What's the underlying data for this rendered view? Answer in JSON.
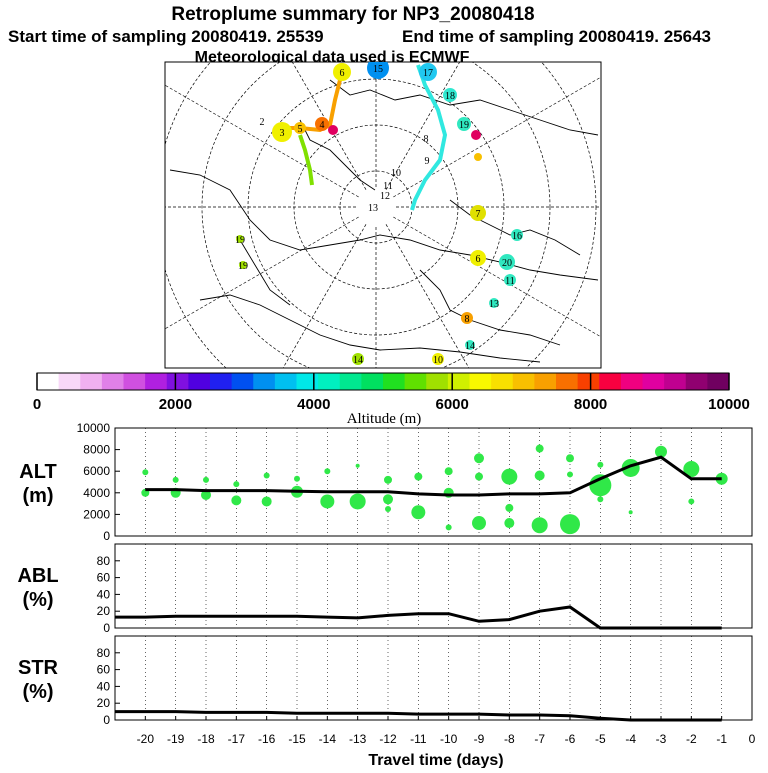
{
  "header": {
    "title": "Retroplume summary for NP3_20080418",
    "start_label": "Start time of sampling 20080419. 25539",
    "end_label": "End time of sampling 20080419. 25643",
    "met_label": "Meteorological data used is ECMWF"
  },
  "map": {
    "labels": [
      "2",
      "3",
      "4",
      "5",
      "6",
      "7",
      "8",
      "9",
      "10",
      "11",
      "12",
      "13",
      "14",
      "15",
      "16",
      "17",
      "18",
      "19",
      "20"
    ]
  },
  "colorbar": {
    "ticks": [
      "0",
      "2000",
      "4000",
      "6000",
      "8000",
      "10000"
    ],
    "label": "Altitude (m)",
    "colors": [
      "#ffffff",
      "#f8d8f8",
      "#f0b0f0",
      "#e080e8",
      "#d050e0",
      "#b020e0",
      "#8010e0",
      "#5000e0",
      "#2020f0",
      "#0050f0",
      "#0090f0",
      "#00c0f0",
      "#00e8e8",
      "#00f0c0",
      "#00e890",
      "#00e060",
      "#20e020",
      "#60e000",
      "#a0e000",
      "#d0f000",
      "#f8f800",
      "#f8e000",
      "#f8c000",
      "#f8a000",
      "#f87000",
      "#f84000",
      "#f80040",
      "#f00080",
      "#e000a0",
      "#c00090",
      "#900070",
      "#700060"
    ]
  },
  "chart_data": [
    {
      "type": "scatter",
      "name": "ALT",
      "ylabel": "ALT\n(m)",
      "ylabel_lines": [
        "ALT",
        "(m)"
      ],
      "ylim": [
        0,
        10000
      ],
      "yticks": [
        "0",
        "2000",
        "4000",
        "6000",
        "8000",
        "10000"
      ],
      "xlim": [
        -21,
        0
      ],
      "line": {
        "x": [
          -20,
          -19,
          -18,
          -17,
          -16,
          -15,
          -14,
          -13,
          -12,
          -11,
          -10,
          -9,
          -8,
          -7,
          -6,
          -5,
          -4,
          -3,
          -2,
          -1
        ],
        "y": [
          4300,
          4300,
          4200,
          4200,
          4200,
          4150,
          4100,
          4100,
          4100,
          3900,
          3800,
          3800,
          3900,
          3900,
          4000,
          5300,
          6500,
          7300,
          5300,
          5300
        ]
      },
      "points": [
        {
          "x": -20,
          "y": 4000,
          "s": 4
        },
        {
          "x": -20,
          "y": 5900,
          "s": 3
        },
        {
          "x": -19,
          "y": 4000,
          "s": 5
        },
        {
          "x": -19,
          "y": 5200,
          "s": 3
        },
        {
          "x": -18,
          "y": 3800,
          "s": 5
        },
        {
          "x": -18,
          "y": 5200,
          "s": 3
        },
        {
          "x": -17,
          "y": 3300,
          "s": 5
        },
        {
          "x": -17,
          "y": 4800,
          "s": 3
        },
        {
          "x": -16,
          "y": 3200,
          "s": 5
        },
        {
          "x": -16,
          "y": 5600,
          "s": 3
        },
        {
          "x": -15,
          "y": 4100,
          "s": 6
        },
        {
          "x": -15,
          "y": 5300,
          "s": 3
        },
        {
          "x": -14,
          "y": 3200,
          "s": 7
        },
        {
          "x": -14,
          "y": 6000,
          "s": 3
        },
        {
          "x": -13,
          "y": 3200,
          "s": 8
        },
        {
          "x": -13,
          "y": 6500,
          "s": 2
        },
        {
          "x": -12,
          "y": 3400,
          "s": 5
        },
        {
          "x": -12,
          "y": 5200,
          "s": 4
        },
        {
          "x": -12,
          "y": 2500,
          "s": 3
        },
        {
          "x": -11,
          "y": 2200,
          "s": 7
        },
        {
          "x": -11,
          "y": 5500,
          "s": 4
        },
        {
          "x": -10,
          "y": 6000,
          "s": 4
        },
        {
          "x": -10,
          "y": 4000,
          "s": 5
        },
        {
          "x": -10,
          "y": 800,
          "s": 3
        },
        {
          "x": -9,
          "y": 7200,
          "s": 5
        },
        {
          "x": -9,
          "y": 5500,
          "s": 4
        },
        {
          "x": -9,
          "y": 1200,
          "s": 7
        },
        {
          "x": -8,
          "y": 5500,
          "s": 8
        },
        {
          "x": -8,
          "y": 2600,
          "s": 4
        },
        {
          "x": -8,
          "y": 1200,
          "s": 5
        },
        {
          "x": -7,
          "y": 8100,
          "s": 4
        },
        {
          "x": -7,
          "y": 5600,
          "s": 5
        },
        {
          "x": -7,
          "y": 1000,
          "s": 8
        },
        {
          "x": -6,
          "y": 7200,
          "s": 4
        },
        {
          "x": -6,
          "y": 5700,
          "s": 3
        },
        {
          "x": -6,
          "y": 1100,
          "s": 10
        },
        {
          "x": -5,
          "y": 4700,
          "s": 11
        },
        {
          "x": -5,
          "y": 3400,
          "s": 3
        },
        {
          "x": -5,
          "y": 6600,
          "s": 3
        },
        {
          "x": -4,
          "y": 6300,
          "s": 9
        },
        {
          "x": -4,
          "y": 2200,
          "s": 2
        },
        {
          "x": -3,
          "y": 7800,
          "s": 6
        },
        {
          "x": -2,
          "y": 6200,
          "s": 8
        },
        {
          "x": -2,
          "y": 3200,
          "s": 3
        },
        {
          "x": -1,
          "y": 5300,
          "s": 6
        }
      ]
    },
    {
      "type": "line",
      "name": "ABL",
      "ylabel_lines": [
        "ABL",
        "(%)"
      ],
      "ylim": [
        0,
        100
      ],
      "yticks": [
        "0",
        "20",
        "40",
        "60",
        "80"
      ],
      "xlim": [
        -21,
        0
      ],
      "x": [
        -21,
        -20,
        -19,
        -18,
        -17,
        -16,
        -15,
        -14,
        -13,
        -12,
        -11,
        -10,
        -9,
        -8,
        -7,
        -6,
        -5,
        -4,
        -3,
        -2,
        -1
      ],
      "y": [
        13,
        13,
        14,
        14,
        14,
        14,
        14,
        13,
        12,
        15,
        17,
        17,
        8,
        10,
        20,
        25,
        0,
        0,
        0,
        0,
        0
      ]
    },
    {
      "type": "line",
      "name": "STR",
      "ylabel_lines": [
        "STR",
        "(%)"
      ],
      "ylim": [
        0,
        100
      ],
      "yticks": [
        "0",
        "20",
        "40",
        "60",
        "80"
      ],
      "xlim": [
        -21,
        0
      ],
      "x": [
        -21,
        -20,
        -19,
        -18,
        -17,
        -16,
        -15,
        -14,
        -13,
        -12,
        -11,
        -10,
        -9,
        -8,
        -7,
        -6,
        -5,
        -4,
        -3,
        -2,
        -1
      ],
      "y": [
        10,
        10,
        10,
        9,
        9,
        9,
        8,
        8,
        8,
        8,
        7,
        7,
        7,
        6,
        6,
        5,
        2,
        0,
        0,
        0,
        0
      ],
      "xticks": [
        "-20",
        "-19",
        "-18",
        "-17",
        "-16",
        "-15",
        "-14",
        "-13",
        "-12",
        "-11",
        "-10",
        "-9",
        "-8",
        "-7",
        "-6",
        "-5",
        "-4",
        "-3",
        "-2",
        "-1",
        "0"
      ],
      "xlabel": "Travel time (days)"
    }
  ]
}
